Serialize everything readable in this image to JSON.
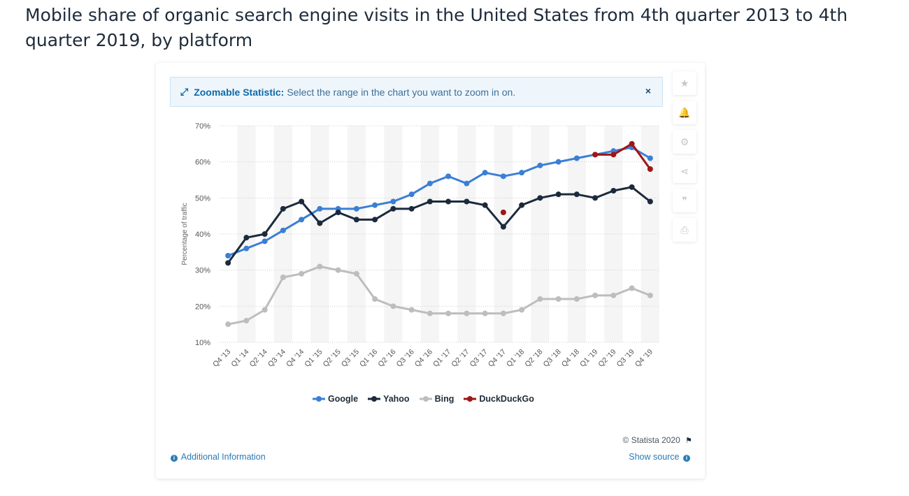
{
  "title": "Mobile share of organic search engine visits in the United States from 4th quarter 2013 to 4th quarter 2019, by platform",
  "banner": {
    "strong": "Zoomable Statistic:",
    "text": "Select the range in the chart you want to zoom in on.",
    "close": "×"
  },
  "tools": [
    {
      "name": "star-icon",
      "glyph": "★"
    },
    {
      "name": "bell-icon",
      "glyph": "🔔"
    },
    {
      "name": "gear-icon",
      "glyph": "⚙"
    },
    {
      "name": "share-icon",
      "glyph": "⋖"
    },
    {
      "name": "quote-icon",
      "glyph": "❞"
    },
    {
      "name": "print-icon",
      "glyph": "⎙"
    }
  ],
  "footer": {
    "credit": "© Statista 2020",
    "additional_info": "Additional Information",
    "show_source": "Show source"
  },
  "chart_data": {
    "type": "line",
    "title": "",
    "xlabel": "",
    "ylabel": "Percentage of traffic",
    "ylim": [
      10,
      70
    ],
    "yticks": [
      "10%",
      "20%",
      "30%",
      "40%",
      "50%",
      "60%",
      "70%"
    ],
    "grid": true,
    "legend_position": "bottom",
    "categories": [
      "Q4 '13",
      "Q1 '14",
      "Q2 '14",
      "Q3 '14",
      "Q4 '14",
      "Q1 '15",
      "Q2 '15",
      "Q3 '15",
      "Q1 '16",
      "Q2 '16",
      "Q3 '16",
      "Q4 '16",
      "Q1 '17",
      "Q2 '17",
      "Q3 '17",
      "Q4 '17",
      "Q1 '18",
      "Q2 '18",
      "Q3 '18",
      "Q4 '18",
      "Q1 '19",
      "Q2 '19",
      "Q3 '19",
      "Q4 '19"
    ],
    "series": [
      {
        "name": "Google",
        "color": "#3a7fd5",
        "values": [
          34,
          36,
          38,
          41,
          44,
          47,
          47,
          47,
          48,
          49,
          51,
          54,
          56,
          54,
          57,
          56,
          57,
          59,
          60,
          61,
          62,
          63,
          64,
          61
        ]
      },
      {
        "name": "Yahoo",
        "color": "#1b2a3c",
        "values": [
          32,
          39,
          40,
          47,
          49,
          43,
          46,
          44,
          44,
          47,
          47,
          49,
          49,
          49,
          48,
          42,
          48,
          50,
          51,
          51,
          50,
          52,
          53,
          49
        ]
      },
      {
        "name": "Bing",
        "color": "#bdbdbd",
        "values": [
          15,
          16,
          19,
          28,
          29,
          31,
          30,
          29,
          22,
          20,
          19,
          18,
          18,
          18,
          18,
          18,
          19,
          22,
          22,
          22,
          23,
          23,
          25,
          23
        ]
      },
      {
        "name": "DuckDuckGo",
        "color": "#a01515",
        "values": [
          null,
          null,
          null,
          null,
          null,
          null,
          null,
          null,
          null,
          null,
          null,
          null,
          null,
          null,
          null,
          46,
          null,
          null,
          null,
          null,
          62,
          62,
          65,
          58
        ]
      }
    ]
  }
}
